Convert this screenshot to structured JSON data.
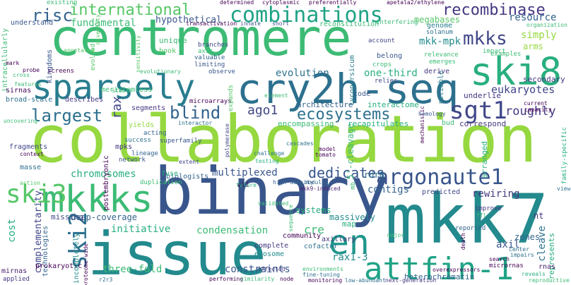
{
  "words": [
    {
      "text": "collaboration",
      "color": "#95d840"
    },
    {
      "text": "binary",
      "color": "#39568c"
    },
    {
      "text": "centromere",
      "color": "#3cbb75"
    },
    {
      "text": "issue",
      "color": "#238a8d"
    },
    {
      "text": "mkk7",
      "color": "#238a8d"
    },
    {
      "text": "cry2h-seq",
      "color": "#2d708e"
    },
    {
      "text": "sparsely",
      "color": "#287d8e"
    },
    {
      "text": "attfin-1",
      "color": "#20a386"
    },
    {
      "text": "ski8",
      "color": "#29af7f"
    },
    {
      "text": "mkkks",
      "color": "#3cbb75"
    },
    {
      "text": "en",
      "color": "#1f968b"
    },
    {
      "text": "combinations",
      "color": "#20a386"
    },
    {
      "text": "argonaute1",
      "color": "#39568c"
    },
    {
      "text": "ski3",
      "color": "#55c667"
    },
    {
      "text": "ski2",
      "color": "#2d708e"
    },
    {
      "text": "mkks",
      "color": "#404788"
    },
    {
      "text": "international",
      "color": "#55c667"
    },
    {
      "text": "recombinase",
      "color": "#453781"
    },
    {
      "text": "ecosystems",
      "color": "#2d708e"
    },
    {
      "text": "sgt1",
      "color": "#404788"
    },
    {
      "text": "blind",
      "color": "#33638d"
    },
    {
      "text": "largest",
      "color": "#2d708e"
    },
    {
      "text": "risc",
      "color": "#33638d"
    },
    {
      "text": "ago1",
      "color": "#404788"
    },
    {
      "text": "fundamental",
      "color": "#3cbb75"
    },
    {
      "text": "hypothetical",
      "color": "#39568c"
    },
    {
      "text": "eukaryotes",
      "color": "#404788"
    },
    {
      "text": "roughly",
      "color": "#453781"
    },
    {
      "text": "resource",
      "color": "#33638d"
    },
    {
      "text": "simply",
      "color": "#95d840"
    },
    {
      "text": "mkk-mpk",
      "color": "#238a8d"
    },
    {
      "text": "megabases",
      "color": "#55c667"
    },
    {
      "text": "evolution",
      "color": "#2d708e"
    },
    {
      "text": "one-third",
      "color": "#29af7f"
    },
    {
      "text": "architecture",
      "color": "#33638d"
    },
    {
      "text": "interactome",
      "color": "#29af7f"
    },
    {
      "text": "rax",
      "color": "#404788"
    },
    {
      "text": "multiplexed",
      "color": "#39568c"
    },
    {
      "text": "dedicates",
      "color": "#39568c"
    },
    {
      "text": "chromosomes",
      "color": "#29af7f"
    },
    {
      "text": "rdr6",
      "color": "#2d708e"
    },
    {
      "text": "contigs",
      "color": "#33638d"
    },
    {
      "text": "rewiring",
      "color": "#453781"
    },
    {
      "text": "cre",
      "color": "#3cbb75"
    },
    {
      "text": "initiative",
      "color": "#29af7f"
    },
    {
      "text": "condensation",
      "color": "#3cbb75"
    },
    {
      "text": "deep-coverage",
      "color": "#33638d"
    },
    {
      "text": "complementarity",
      "color": "#404788"
    },
    {
      "text": "cost",
      "color": "#29af7f"
    },
    {
      "text": "rax1-3",
      "color": "#238a8d"
    },
    {
      "text": "constraints",
      "color": "#39568c"
    },
    {
      "text": "three-fold",
      "color": "#3cbb75"
    },
    {
      "text": "prokaryotic",
      "color": "#440154"
    },
    {
      "text": "axil",
      "color": "#39568c"
    },
    {
      "text": "cleave",
      "color": "#2d708e"
    },
    {
      "text": "nt",
      "color": "#453781"
    },
    {
      "text": "zones",
      "color": "#33638d"
    },
    {
      "text": "heterochromatin",
      "color": "#33638d"
    },
    {
      "text": "systems",
      "color": "#29af7f"
    },
    {
      "text": "massively",
      "color": "#238a8d"
    },
    {
      "text": "axillary",
      "color": "#453781"
    },
    {
      "text": "community",
      "color": "#440154"
    },
    {
      "text": "exosome",
      "color": "#238a8d"
    },
    {
      "text": "cofactor",
      "color": "#2d708e"
    },
    {
      "text": "complete",
      "color": "#453781"
    },
    {
      "text": "missing",
      "color": "#404788"
    },
    {
      "text": "encompassing",
      "color": "#3cbb75"
    },
    {
      "text": "recapitulates",
      "color": "#29af7f"
    },
    {
      "text": "correspond",
      "color": "#453781"
    },
    {
      "text": "underlie",
      "color": "#453781"
    },
    {
      "text": "secondary",
      "color": "#453781"
    },
    {
      "text": "segments",
      "color": "#453781"
    },
    {
      "text": "mpks",
      "color": "#453781"
    },
    {
      "text": "biologists",
      "color": "#33638d"
    },
    {
      "text": "predicted",
      "color": "#404788"
    },
    {
      "text": "reliable",
      "color": "#287d8e"
    },
    {
      "text": "code",
      "color": "#39568c"
    },
    {
      "text": "derive",
      "color": "#453781"
    },
    {
      "text": "belong",
      "color": "#39568c"
    },
    {
      "text": "arms",
      "color": "#95d840"
    },
    {
      "text": "examples",
      "color": "#3cbb75"
    },
    {
      "text": "understand",
      "color": "#39568c"
    },
    {
      "text": "intracellularly",
      "color": "#3cbb75"
    },
    {
      "text": "sirnas",
      "color": "#440154"
    },
    {
      "text": "broad-scale",
      "color": "#2d708e"
    },
    {
      "text": "describes",
      "color": "#453781"
    },
    {
      "text": "meristemless",
      "color": "#3cbb75"
    },
    {
      "text": "unique",
      "color": "#3cbb75"
    },
    {
      "text": "hook",
      "color": "#55c667"
    },
    {
      "text": "reconstitution",
      "color": "#3cbb75"
    },
    {
      "text": "vii",
      "color": "#440154"
    },
    {
      "text": "5'-cleavage",
      "color": "#3cbb75"
    },
    {
      "text": "arranged",
      "color": "#29af7f"
    },
    {
      "text": "represents",
      "color": "#29af7f"
    },
    {
      "text": "fuse",
      "color": "#29af7f"
    },
    {
      "text": "masse",
      "color": "#2d708e"
    },
    {
      "text": "fragments",
      "color": "#404788"
    },
    {
      "text": "technologies",
      "color": "#33638d"
    },
    {
      "text": "incompletely",
      "color": "#238a8d"
    },
    {
      "text": "mirnas",
      "color": "#481f70"
    },
    {
      "text": "applied",
      "color": "#453781"
    },
    {
      "text": "postembryonic",
      "color": "#440154"
    },
    {
      "text": "lycopersicum",
      "color": "#287d8e"
    },
    {
      "text": "bud",
      "color": "#3cbb75"
    },
    {
      "text": "duplication",
      "color": "#3cbb75"
    },
    {
      "text": "microarrays",
      "color": "#440154"
    },
    {
      "text": "kingdoms",
      "color": "#39568c"
    },
    {
      "text": "yields",
      "color": "#95d840"
    },
    {
      "text": "mechanistic",
      "color": "#440154"
    },
    {
      "text": "lineage",
      "color": "#33638d"
    },
    {
      "text": "network",
      "color": "#39568c"
    },
    {
      "text": "superfamily",
      "color": "#39568c"
    },
    {
      "text": "success",
      "color": "#2d708e"
    },
    {
      "text": "acting",
      "color": "#33638d"
    },
    {
      "text": "valuable",
      "color": "#33638d"
    },
    {
      "text": "limiting",
      "color": "#39568c"
    },
    {
      "text": "observe",
      "color": "#39568c"
    },
    {
      "text": "screens",
      "color": "#440154"
    },
    {
      "text": "evolved",
      "color": "#55c667"
    },
    {
      "text": "branches",
      "color": "#404788"
    },
    {
      "text": "axis",
      "color": "#3cbb75"
    },
    {
      "text": "crops",
      "color": "#3cbb75"
    },
    {
      "text": "account",
      "color": "#404788"
    },
    {
      "text": "relies",
      "color": "#404788"
    },
    {
      "text": "relevance",
      "color": "#3cbb75"
    },
    {
      "text": "emerges",
      "color": "#3cbb75"
    },
    {
      "text": "impact",
      "color": "#3cbb75"
    },
    {
      "text": "genome",
      "color": "#287d8e"
    },
    {
      "text": "solanum",
      "color": "#2d708e"
    },
    {
      "text": "interfering",
      "color": "#3cbb75"
    },
    {
      "text": "existing",
      "color": "#3cbb75"
    },
    {
      "text": "determined",
      "color": "#440154"
    },
    {
      "text": "cytoplasmic",
      "color": "#440154"
    },
    {
      "text": "preferentially",
      "color": "#440154"
    },
    {
      "text": "apetala2/ethylene",
      "color": "#440154"
    },
    {
      "text": "organization",
      "color": "#3cbb75"
    },
    {
      "text": "transactivation",
      "color": "#440154"
    },
    {
      "text": "innate",
      "color": "#39568c"
    },
    {
      "text": "short",
      "color": "#39568c"
    },
    {
      "text": "mark",
      "color": "#440154"
    },
    {
      "text": "probe",
      "color": "#440154"
    },
    {
      "text": "annotated",
      "color": "#55c667"
    },
    {
      "text": "evolutionary",
      "color": "#3cbb75"
    },
    {
      "text": "cross",
      "color": "#3cbb75"
    },
    {
      "text": "features",
      "color": "#3cbb75"
    },
    {
      "text": "stable",
      "color": "#3cbb75"
    },
    {
      "text": "sensitivity",
      "color": "#55c667"
    },
    {
      "text": "diversity",
      "color": "#55c667"
    },
    {
      "text": "expands",
      "color": "#55c667"
    },
    {
      "text": "element",
      "color": "#3cbb75"
    },
    {
      "text": "homology",
      "color": "#39568c"
    },
    {
      "text": "current",
      "color": "#440154"
    },
    {
      "text": "capacity",
      "color": "#440154"
    },
    {
      "text": "family-specific",
      "color": "#29af7f"
    },
    {
      "text": "uncovering",
      "color": "#3cbb75"
    },
    {
      "text": "context",
      "color": "#440154"
    },
    {
      "text": "interactor",
      "color": "#2d708e"
    },
    {
      "text": "cascades",
      "color": "#2d708e"
    },
    {
      "text": "polymerase",
      "color": "#404788"
    },
    {
      "text": "extent",
      "color": "#404788"
    },
    {
      "text": "tomato",
      "color": "#440154"
    },
    {
      "text": "model",
      "color": "#440154"
    },
    {
      "text": "mb",
      "color": "#3cbb75"
    },
    {
      "text": "challenge",
      "color": "#2d708e"
    },
    {
      "text": "testing",
      "color": "#29af7f"
    },
    {
      "text": "high-density",
      "color": "#33638d"
    },
    {
      "text": "modules",
      "color": "#33638d"
    },
    {
      "text": "mkk9-induced",
      "color": "#481f70"
    },
    {
      "text": "future",
      "color": "#29af7f"
    },
    {
      "text": "action",
      "color": "#55c667"
    },
    {
      "text": "validated",
      "color": "#3cbb75"
    },
    {
      "text": "sequence",
      "color": "#3cbb75"
    },
    {
      "text": "map",
      "color": "#29af7f"
    },
    {
      "text": "reported",
      "color": "#33638d"
    },
    {
      "text": "improve",
      "color": "#453781"
    },
    {
      "text": "ffl",
      "color": "#3cbb75"
    },
    {
      "text": "death",
      "color": "#440154"
    },
    {
      "text": "major",
      "color": "#3cbb75"
    },
    {
      "text": "center",
      "color": "#2d708e"
    },
    {
      "text": "impairs",
      "color": "#2d708e"
    },
    {
      "text": "rnas",
      "color": "#481f70"
    },
    {
      "text": "micrornas",
      "color": "#440154"
    },
    {
      "text": "overexpressors",
      "color": "#440154"
    },
    {
      "text": "reveals",
      "color": "#29af7f"
    },
    {
      "text": "view",
      "color": "#2d708e"
    },
    {
      "text": "reproductive",
      "color": "#3cbb75"
    },
    {
      "text": "search",
      "color": "#440154"
    },
    {
      "text": "r2r3",
      "color": "#2d708e"
    },
    {
      "text": "effected",
      "color": "#453781"
    },
    {
      "text": "proteome-wide",
      "color": "#440154"
    },
    {
      "text": "performing",
      "color": "#440154"
    },
    {
      "text": "similarity",
      "color": "#3cbb75"
    },
    {
      "text": "node",
      "color": "#440154"
    },
    {
      "text": "environments",
      "color": "#3cbb75"
    },
    {
      "text": "fine-tuning",
      "color": "#2d708e"
    },
    {
      "text": "monitoring",
      "color": "#440154"
    },
    {
      "text": "low-abundant",
      "color": "#2d708e"
    },
    {
      "text": "next-generation",
      "color": "#453781"
    }
  ]
}
